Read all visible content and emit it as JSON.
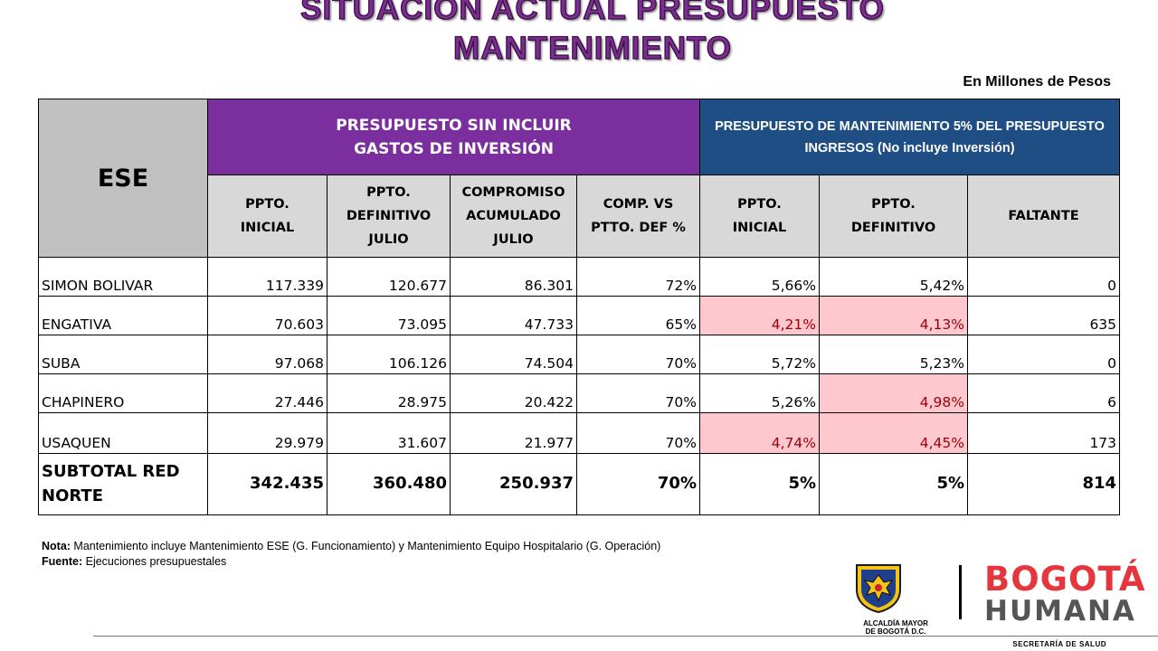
{
  "header": {
    "title_line1": "SITUACIÓN ACTUAL PRESUPUESTO",
    "title_line2": "MANTENIMIENTO",
    "units": "En Millones de Pesos"
  },
  "table": {
    "col_ese": "ESE",
    "group1_line1": "PRESUPUESTO SIN INCLUIR",
    "group1_line2": "GASTOS DE INVERSIÓN",
    "group2": "PRESUPUESTO DE MANTENIMIENTO 5% DEL PRESUPUESTO INGRESOS (No incluye Inversión)",
    "columns": [
      {
        "line1": "PPTO.",
        "line2": "INICIAL",
        "line3": ""
      },
      {
        "line1": "PPTO.",
        "line2": "DEFINITIVO",
        "line3": "JULIO"
      },
      {
        "line1": "COMPROMISO",
        "line2": "ACUMULADO",
        "line3": "JULIO"
      },
      {
        "line1": "COMP. VS",
        "line2": "PTTO. DEF %",
        "line3": ""
      },
      {
        "line1": "PPTO.",
        "line2": "INICIAL",
        "line3": ""
      },
      {
        "line1": "PPTO.",
        "line2": "DEFINITIVO",
        "line3": ""
      },
      {
        "line1": "FALTANTE",
        "line2": "",
        "line3": ""
      }
    ],
    "rows": [
      {
        "name": "SIMON BOLIVAR",
        "values": [
          "117.339",
          "120.677",
          "86.301",
          "72%",
          "5,66%",
          "5,42%",
          "0"
        ]
      },
      {
        "name": "ENGATIVA",
        "values": [
          "70.603",
          "73.095",
          "47.733",
          "65%",
          "4,21%",
          "4,13%",
          "635"
        ]
      },
      {
        "name": "SUBA",
        "values": [
          "97.068",
          "106.126",
          "74.504",
          "70%",
          "5,72%",
          "5,23%",
          "0"
        ]
      },
      {
        "name": "CHAPINERO",
        "values": [
          "27.446",
          "28.975",
          "20.422",
          "70%",
          "5,26%",
          "4,98%",
          "6"
        ]
      },
      {
        "name": "USAQUEN",
        "values": [
          "29.979",
          "31.607",
          "21.977",
          "70%",
          "4,74%",
          "4,45%",
          "173"
        ]
      }
    ],
    "subtotal": {
      "line1": "SUBTOTAL RED",
      "line2": "NORTE",
      "values": [
        "342.435",
        "360.480",
        "250.937",
        "70%",
        "5%",
        "5%",
        "814"
      ]
    },
    "colors": {
      "below_target_fill": "#ffc7ce",
      "below_target_text": "#9c0006",
      "group1": "#7b2f9e",
      "group2": "#1f4e84"
    }
  },
  "notes": {
    "nota_label": "Nota:",
    "nota_text": " Mantenimiento incluye Mantenimiento ESE (G. Funcionamiento) y Mantenimiento Equipo Hospitalario (G. Operación)",
    "fuente_label": "Fuente:",
    "fuente_text": " Ejecuciones presupuestales"
  },
  "logos": {
    "alcaldia_line1": "ALCALDÍA MAYOR",
    "alcaldia_line2": "DE BOGOTÁ D.C.",
    "bogota_line1": "BOGOTÁ",
    "bogota_line2": "HUMANA"
  },
  "footer": {
    "text": "SECRETARÍA DE SALUD"
  }
}
